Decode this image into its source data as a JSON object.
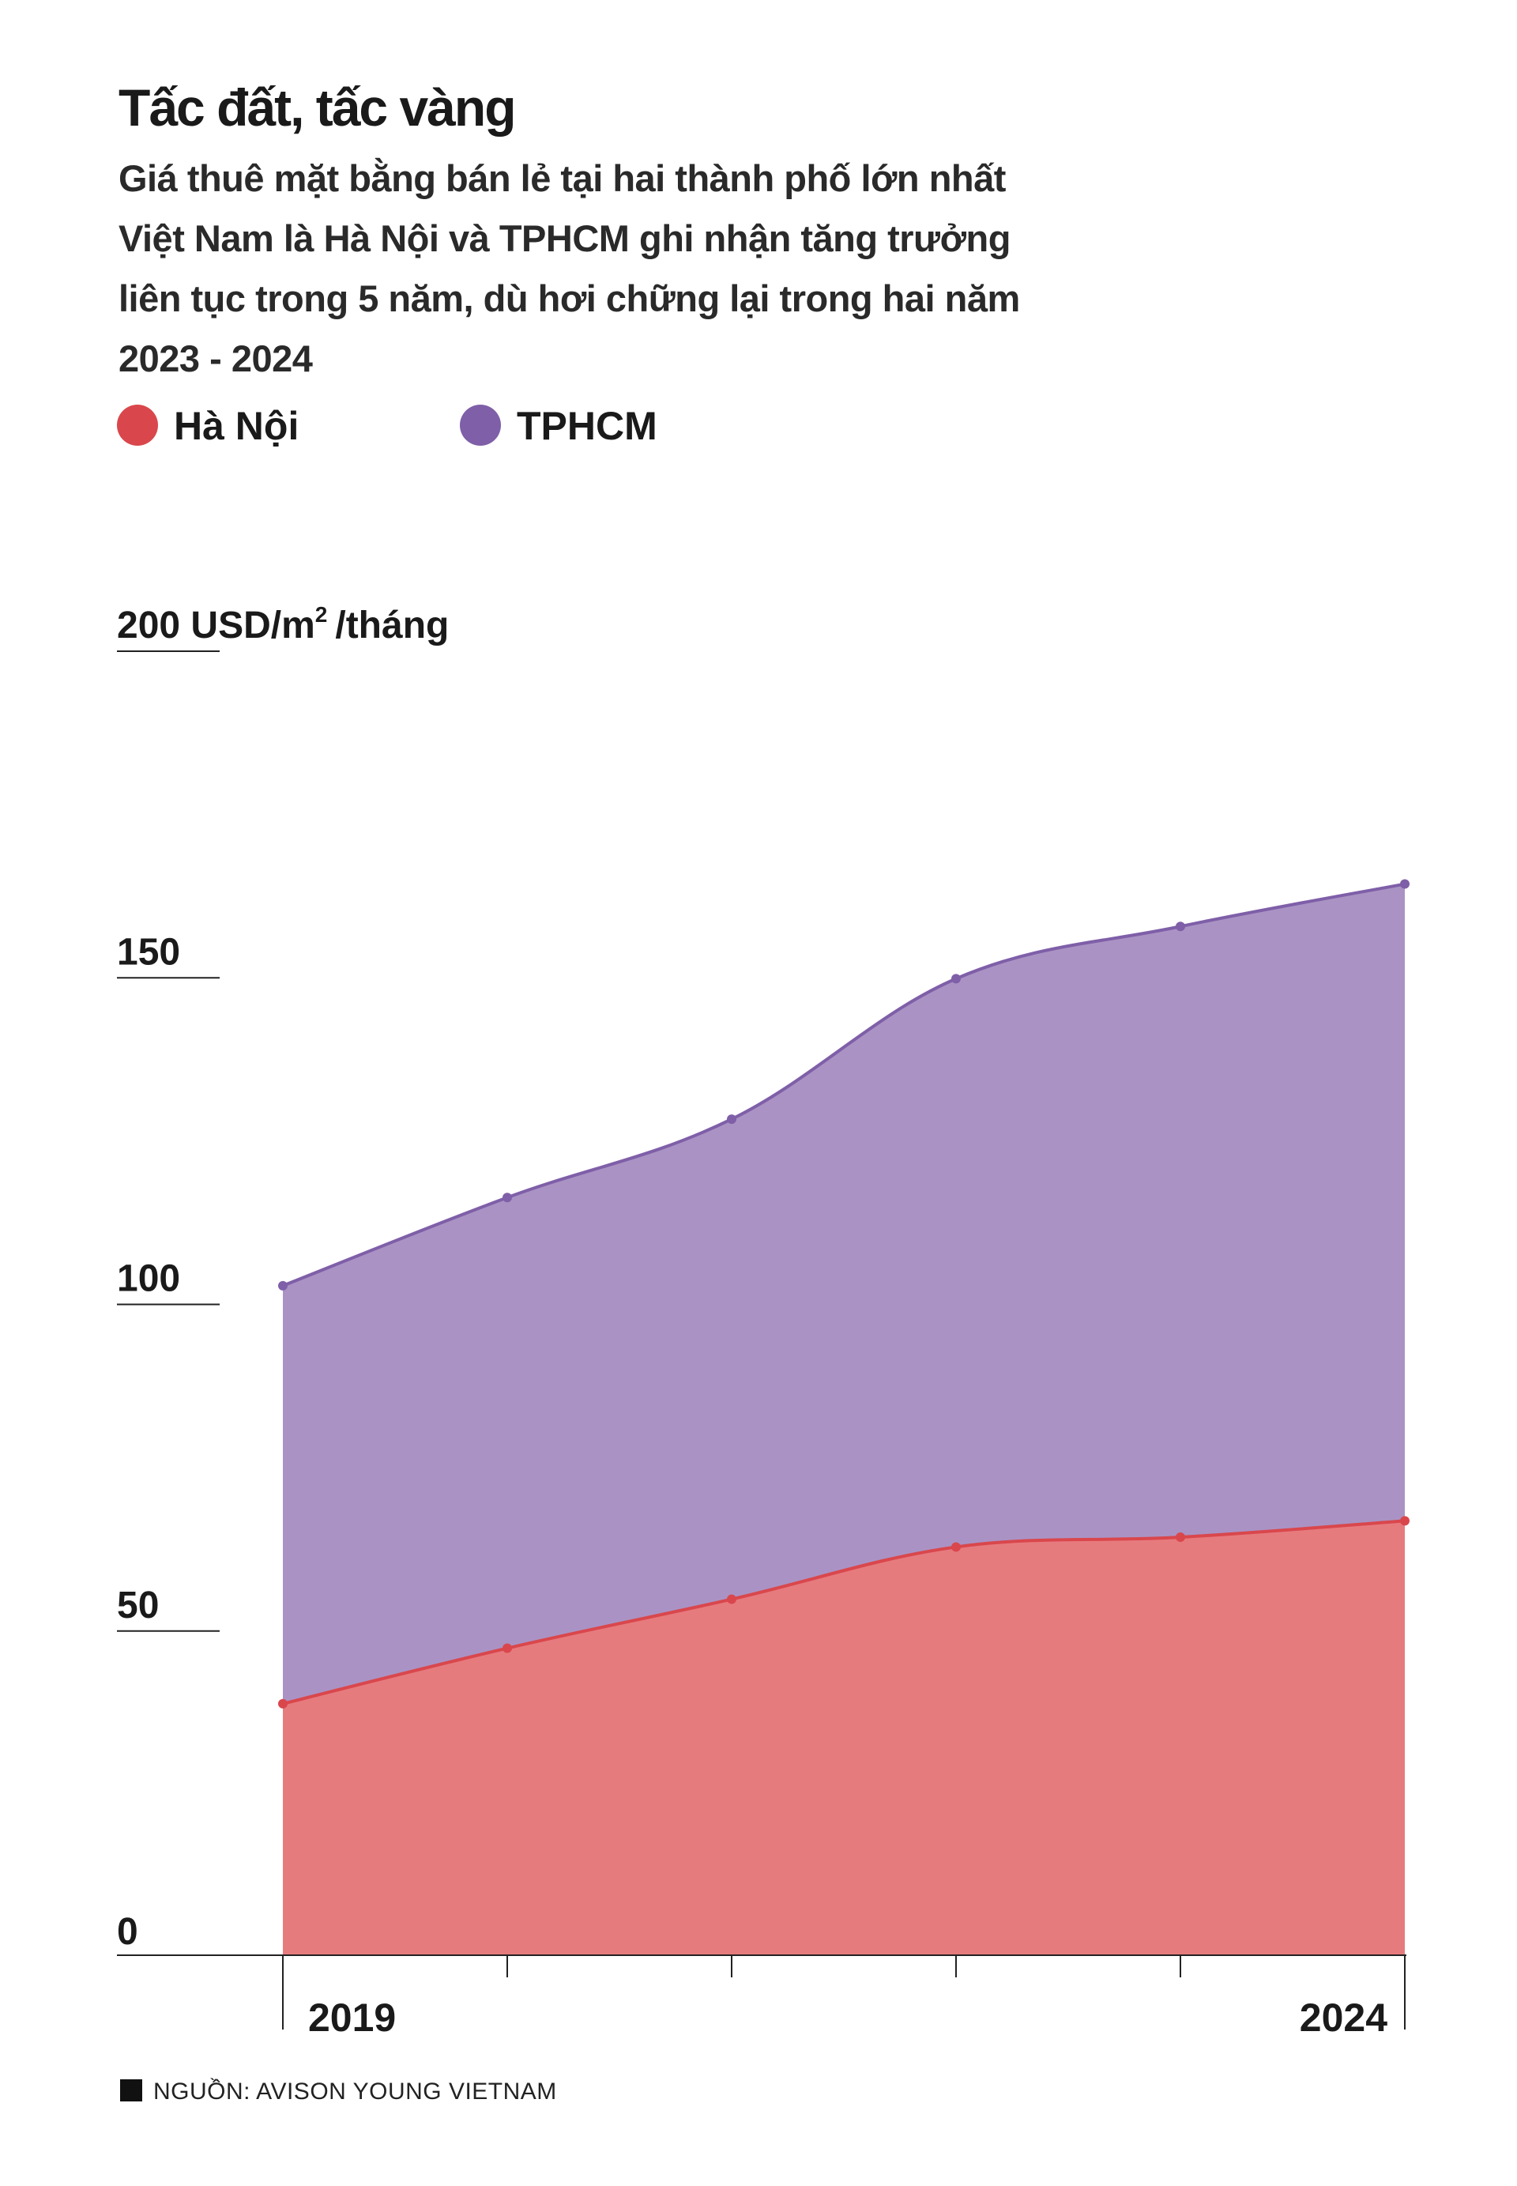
{
  "title": "Tấc đất, tấc vàng",
  "subtitle": "Giá thuê mặt bằng bán lẻ tại hai thành phố lớn nhất Việt Nam là Hà Nội và TPHCM ghi nhận tăng trưởng liên tục trong 5 năm, dù hơi chững lại trong hai năm 2023 - 2024",
  "source": "NGUỒN: AVISON YOUNG VIETNAM",
  "colors": {
    "hanoi_line": "#d9474c",
    "hanoi_fill": "#e67b7e",
    "hcm_line": "#7f5fa8",
    "hcm_fill": "#aa93c4",
    "axis": "#222222"
  },
  "chart_data": {
    "type": "area",
    "stacked": true,
    "ylabel": "USD/m²/tháng",
    "ylim": [
      0,
      200
    ],
    "y_ticks": [
      {
        "value": 0,
        "label": "0"
      },
      {
        "value": 50,
        "label": "50"
      },
      {
        "value": 100,
        "label": "100"
      },
      {
        "value": 150,
        "label": "150"
      },
      {
        "value": 200,
        "label": "200 USD/m"
      }
    ],
    "y_unit_sup": "2",
    "y_unit_suffix": "/tháng",
    "x": [
      2019,
      2020,
      2021,
      2022,
      2023,
      2024
    ],
    "x_tick_labels": [
      "2019",
      "",
      "",
      "",
      "",
      "2024"
    ],
    "legend_position": "top-left",
    "grid": false,
    "series": [
      {
        "name": "Hà Nội",
        "key": "hanoi",
        "values": [
          38.5,
          47,
          54.5,
          62.5,
          64,
          66.5
        ]
      },
      {
        "name": "TPHCM",
        "key": "hcm",
        "values": [
          64,
          69,
          73.5,
          87,
          93.5,
          97.5
        ]
      }
    ]
  }
}
